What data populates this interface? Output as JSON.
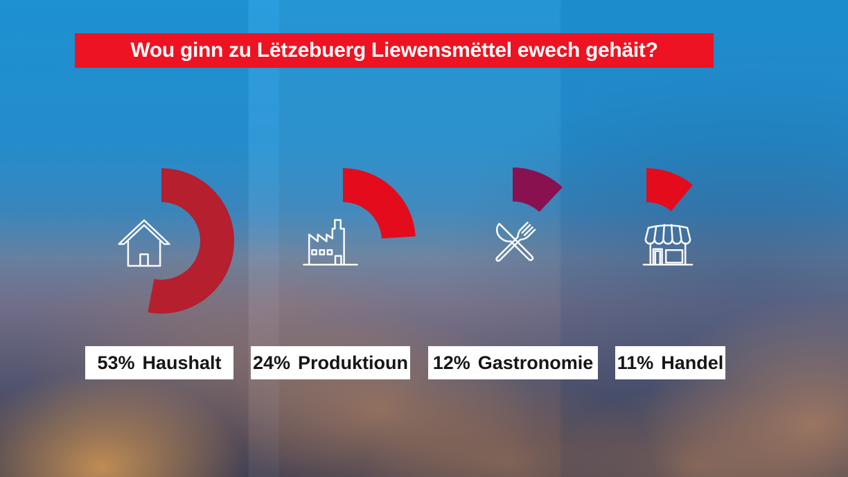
{
  "title_banner": {
    "text": "Wou ginn zu Lëtzebuerg Liewensmëttel ewech gehäit?",
    "bg_color": "#EE1322",
    "text_color": "#FFFFFF"
  },
  "chart_data": {
    "type": "donut-arc-infographic",
    "title": "Wou ginn zu Lëtzebuerg Liewensmëttel ewech gehäit?",
    "unit": "%",
    "categories": [
      "Haushalt",
      "Produktioun",
      "Gastronomie",
      "Handel"
    ],
    "values": [
      53,
      24,
      12,
      11
    ],
    "arc_geometry": {
      "start": "top",
      "direction": "clockwise",
      "full_circle_percent": 100
    },
    "label_style": {
      "bg": "#FFFFFF",
      "text": "#161616"
    },
    "items": [
      {
        "value": 53,
        "percent_label": "53%",
        "label": "Haushalt",
        "color": "#B51F2E",
        "icon": "house"
      },
      {
        "value": 24,
        "percent_label": "24%",
        "label": "Produktioun",
        "color": "#E30B1C",
        "icon": "factory"
      },
      {
        "value": 12,
        "percent_label": "12%",
        "label": "Gastronomie",
        "color": "#8A1150",
        "icon": "restaurant-cutlery"
      },
      {
        "value": 11,
        "percent_label": "11%",
        "label": "Handel",
        "color": "#E30B1C",
        "icon": "shop"
      }
    ]
  }
}
